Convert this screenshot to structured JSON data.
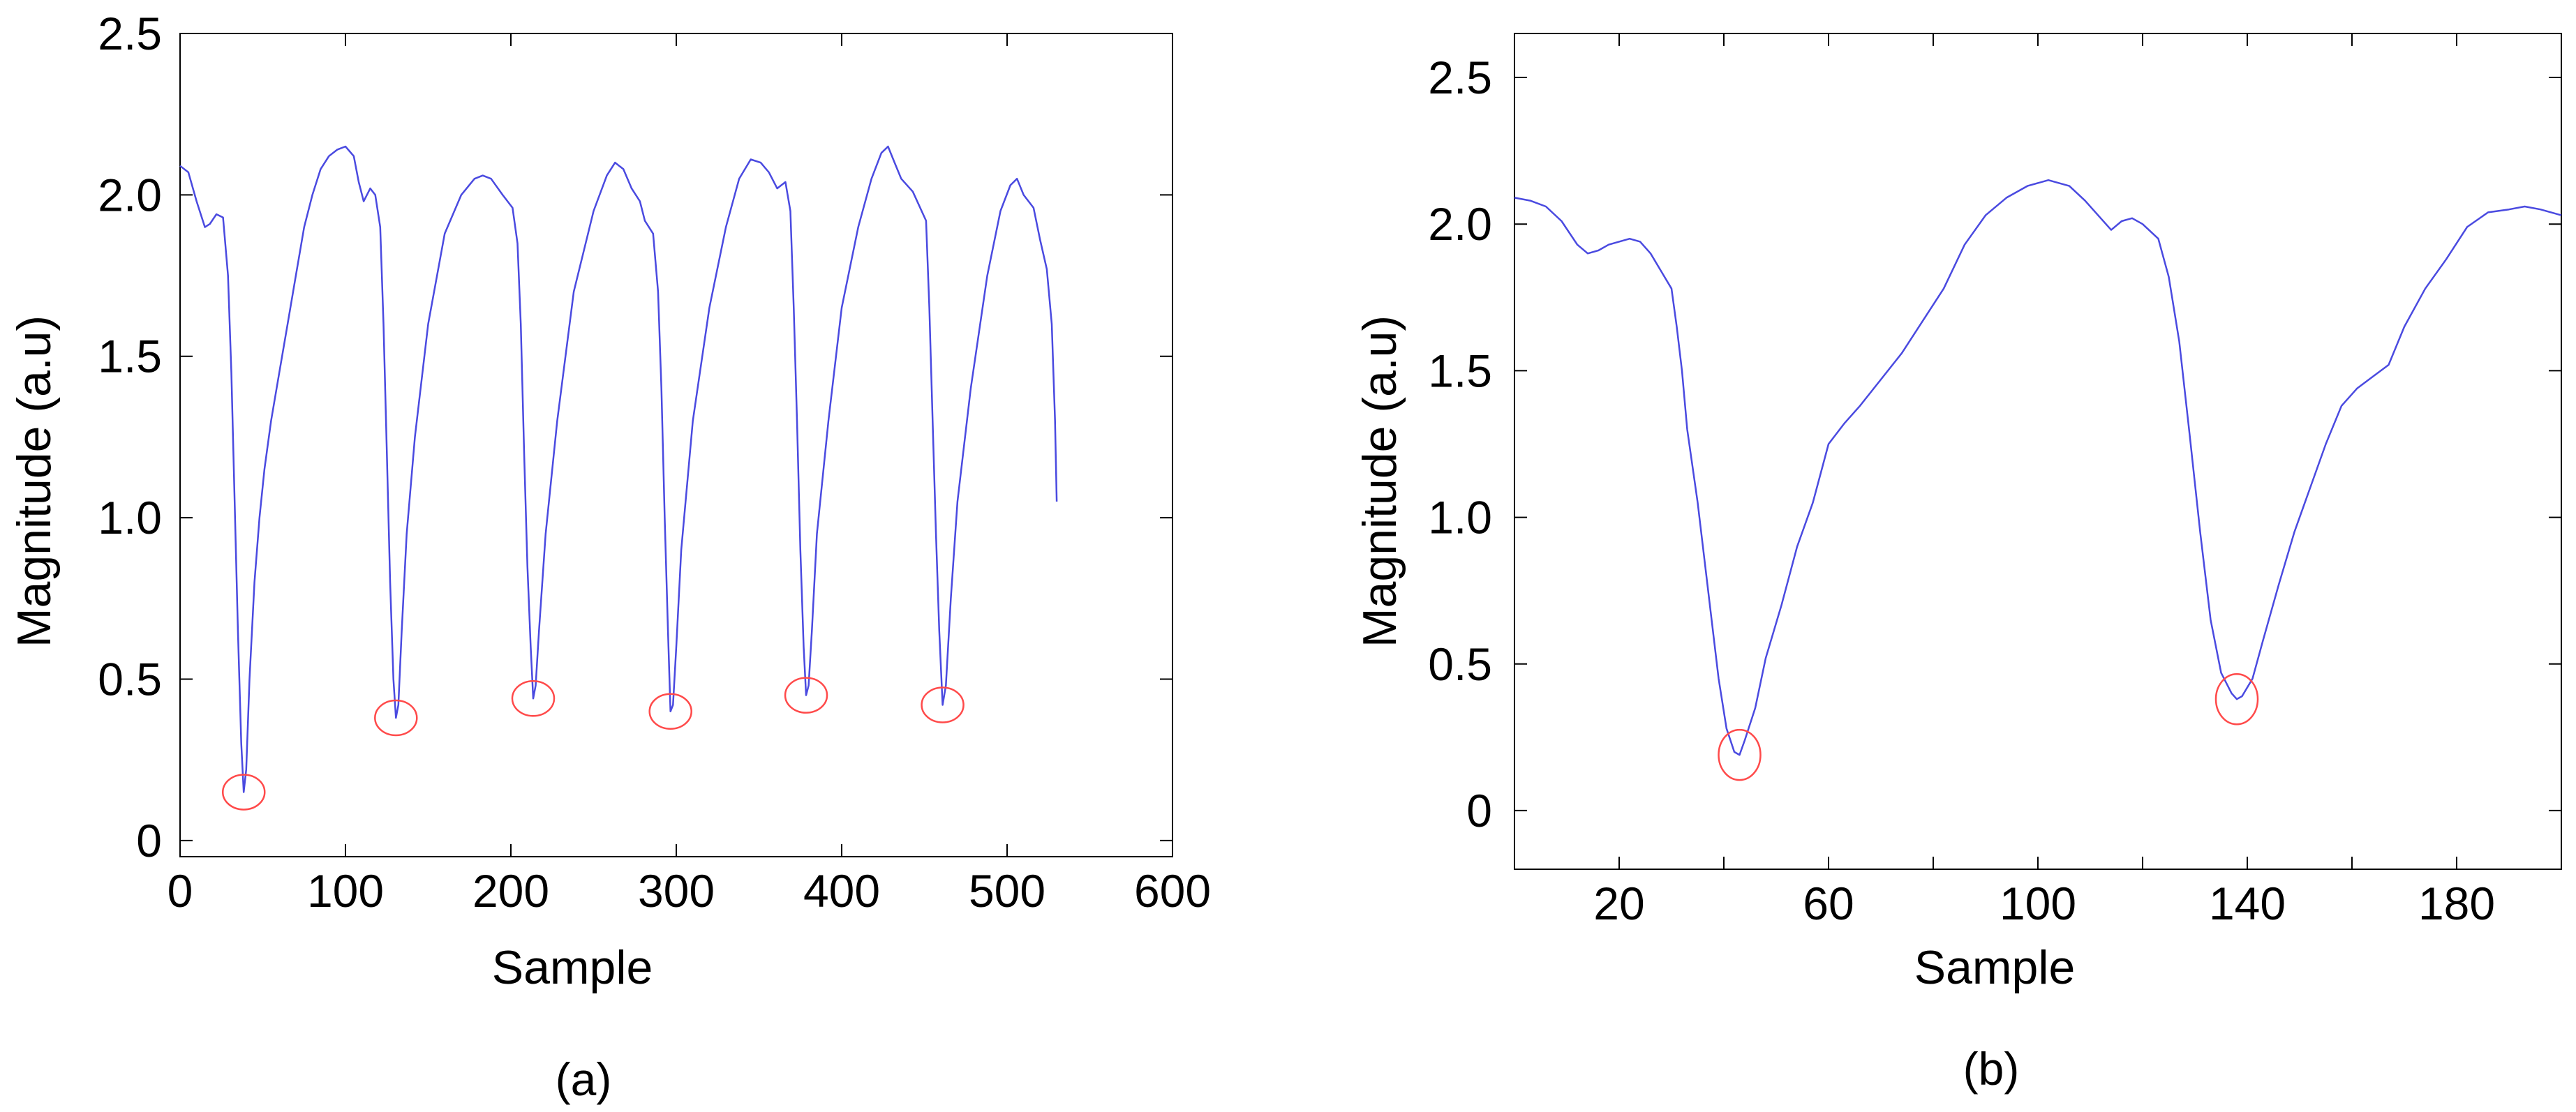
{
  "chart_data": [
    {
      "panel": "(a)",
      "type": "line",
      "xlabel": "Sample",
      "ylabel": "Magnitude (a.u)",
      "xlim": [
        0,
        600
      ],
      "ylim": [
        -0.05,
        2.5
      ],
      "x_ticks": [
        0,
        100,
        200,
        300,
        400,
        500,
        600
      ],
      "x_tick_labels": [
        "0",
        "100",
        "200",
        "300",
        "400",
        "500",
        "600"
      ],
      "y_ticks": [
        0,
        0.5,
        1.0,
        1.5,
        2.0,
        2.5
      ],
      "y_tick_labels": [
        "0",
        "0.5",
        "1.0",
        "1.5",
        "2.0",
        "2.5"
      ],
      "grid": false,
      "line_color": "#4a4ae0",
      "marker_color": "#ff4a4a",
      "series": [
        {
          "points": [
            [
              0,
              2.09
            ],
            [
              5,
              2.07
            ],
            [
              10,
              1.98
            ],
            [
              15,
              1.9
            ],
            [
              18,
              1.91
            ],
            [
              22,
              1.94
            ],
            [
              26,
              1.93
            ],
            [
              29,
              1.75
            ],
            [
              31,
              1.45
            ],
            [
              33,
              1.05
            ],
            [
              35,
              0.65
            ],
            [
              37,
              0.3
            ],
            [
              38.5,
              0.15
            ],
            [
              40,
              0.22
            ],
            [
              42,
              0.5
            ],
            [
              45,
              0.8
            ],
            [
              48,
              1.0
            ],
            [
              51,
              1.15
            ],
            [
              55,
              1.3
            ],
            [
              60,
              1.45
            ],
            [
              65,
              1.6
            ],
            [
              70,
              1.75
            ],
            [
              75,
              1.9
            ],
            [
              80,
              2.0
            ],
            [
              85,
              2.08
            ],
            [
              90,
              2.12
            ],
            [
              95,
              2.14
            ],
            [
              100,
              2.15
            ],
            [
              105,
              2.12
            ],
            [
              108,
              2.04
            ],
            [
              111,
              1.98
            ],
            [
              115,
              2.02
            ],
            [
              118,
              2.0
            ],
            [
              121,
              1.9
            ],
            [
              123,
              1.6
            ],
            [
              125,
              1.2
            ],
            [
              127,
              0.8
            ],
            [
              129,
              0.5
            ],
            [
              130.5,
              0.38
            ],
            [
              132,
              0.42
            ],
            [
              134,
              0.65
            ],
            [
              137,
              0.95
            ],
            [
              142,
              1.25
            ],
            [
              150,
              1.6
            ],
            [
              160,
              1.88
            ],
            [
              170,
              2.0
            ],
            [
              178,
              2.05
            ],
            [
              183,
              2.06
            ],
            [
              188,
              2.05
            ],
            [
              195,
              2.0
            ],
            [
              201,
              1.96
            ],
            [
              204,
              1.85
            ],
            [
              206,
              1.6
            ],
            [
              208,
              1.2
            ],
            [
              210,
              0.85
            ],
            [
              212,
              0.6
            ],
            [
              213.5,
              0.44
            ],
            [
              215,
              0.48
            ],
            [
              217,
              0.65
            ],
            [
              221,
              0.95
            ],
            [
              228,
              1.3
            ],
            [
              238,
              1.7
            ],
            [
              250,
              1.95
            ],
            [
              258,
              2.06
            ],
            [
              263,
              2.1
            ],
            [
              268,
              2.08
            ],
            [
              273,
              2.02
            ],
            [
              278,
              1.98
            ],
            [
              281,
              1.92
            ],
            [
              286,
              1.88
            ],
            [
              289,
              1.7
            ],
            [
              291,
              1.4
            ],
            [
              293,
              1.0
            ],
            [
              295,
              0.65
            ],
            [
              296.5,
              0.4
            ],
            [
              298,
              0.42
            ],
            [
              300,
              0.6
            ],
            [
              303,
              0.9
            ],
            [
              310,
              1.3
            ],
            [
              320,
              1.65
            ],
            [
              330,
              1.9
            ],
            [
              338,
              2.05
            ],
            [
              345,
              2.11
            ],
            [
              351,
              2.1
            ],
            [
              356,
              2.07
            ],
            [
              361,
              2.02
            ],
            [
              366,
              2.04
            ],
            [
              369,
              1.95
            ],
            [
              371,
              1.65
            ],
            [
              373,
              1.3
            ],
            [
              375,
              0.9
            ],
            [
              377,
              0.6
            ],
            [
              378.5,
              0.45
            ],
            [
              380,
              0.48
            ],
            [
              382,
              0.65
            ],
            [
              385,
              0.95
            ],
            [
              392,
              1.3
            ],
            [
              400,
              1.65
            ],
            [
              410,
              1.9
            ],
            [
              418,
              2.05
            ],
            [
              424,
              2.13
            ],
            [
              428,
              2.15
            ],
            [
              432,
              2.1
            ],
            [
              436,
              2.05
            ],
            [
              443,
              2.01
            ],
            [
              451,
              1.92
            ],
            [
              453,
              1.65
            ],
            [
              455,
              1.3
            ],
            [
              457,
              0.95
            ],
            [
              459,
              0.65
            ],
            [
              461,
              0.42
            ],
            [
              463,
              0.48
            ],
            [
              466,
              0.75
            ],
            [
              470,
              1.05
            ],
            [
              478,
              1.4
            ],
            [
              488,
              1.75
            ],
            [
              496,
              1.95
            ],
            [
              502,
              2.03
            ],
            [
              506,
              2.05
            ],
            [
              510,
              2.0
            ],
            [
              516,
              1.96
            ],
            [
              520,
              1.86
            ],
            [
              524,
              1.77
            ],
            [
              527,
              1.6
            ],
            [
              529,
              1.3
            ],
            [
              530,
              1.05
            ]
          ]
        }
      ],
      "marked_minima": [
        {
          "x": 38.5,
          "y": 0.15
        },
        {
          "x": 130.5,
          "y": 0.38
        },
        {
          "x": 213.5,
          "y": 0.44
        },
        {
          "x": 296.5,
          "y": 0.4
        },
        {
          "x": 378.5,
          "y": 0.45
        },
        {
          "x": 461,
          "y": 0.42
        }
      ]
    },
    {
      "panel": "(b)",
      "type": "line",
      "xlabel": "Sample",
      "ylabel": "Magnitude (a.u)",
      "xlim": [
        0,
        200
      ],
      "ylim": [
        -0.2,
        2.65
      ],
      "x_ticks": [
        20,
        40,
        60,
        80,
        100,
        120,
        140,
        160,
        180
      ],
      "x_tick_labels": [
        "20",
        "",
        "60",
        "",
        "100",
        "",
        "140",
        "",
        "180"
      ],
      "y_ticks": [
        0,
        0.5,
        1.0,
        1.5,
        2.0,
        2.5
      ],
      "y_tick_labels": [
        "0",
        "0.5",
        "1.0",
        "1.5",
        "2.0",
        "2.5"
      ],
      "grid": false,
      "line_color": "#4a4ae0",
      "marker_color": "#ff4a4a",
      "series": [
        {
          "points": [
            [
              0,
              2.09
            ],
            [
              3,
              2.08
            ],
            [
              6,
              2.06
            ],
            [
              9,
              2.01
            ],
            [
              12,
              1.93
            ],
            [
              14,
              1.9
            ],
            [
              16,
              1.91
            ],
            [
              18,
              1.93
            ],
            [
              20,
              1.94
            ],
            [
              22,
              1.95
            ],
            [
              24,
              1.94
            ],
            [
              26,
              1.9
            ],
            [
              28,
              1.84
            ],
            [
              30,
              1.78
            ],
            [
              31,
              1.65
            ],
            [
              32,
              1.5
            ],
            [
              33,
              1.3
            ],
            [
              35,
              1.05
            ],
            [
              37,
              0.75
            ],
            [
              39,
              0.45
            ],
            [
              40.5,
              0.28
            ],
            [
              42,
              0.2
            ],
            [
              43,
              0.19
            ],
            [
              44,
              0.24
            ],
            [
              46,
              0.35
            ],
            [
              48,
              0.52
            ],
            [
              51,
              0.7
            ],
            [
              54,
              0.9
            ],
            [
              57,
              1.05
            ],
            [
              60,
              1.25
            ],
            [
              63,
              1.32
            ],
            [
              66,
              1.38
            ],
            [
              70,
              1.47
            ],
            [
              74,
              1.56
            ],
            [
              78,
              1.67
            ],
            [
              82,
              1.78
            ],
            [
              86,
              1.93
            ],
            [
              90,
              2.03
            ],
            [
              94,
              2.09
            ],
            [
              98,
              2.13
            ],
            [
              102,
              2.15
            ],
            [
              106,
              2.13
            ],
            [
              109,
              2.08
            ],
            [
              112,
              2.02
            ],
            [
              114,
              1.98
            ],
            [
              116,
              2.01
            ],
            [
              118,
              2.02
            ],
            [
              120,
              2.0
            ],
            [
              123,
              1.95
            ],
            [
              125,
              1.82
            ],
            [
              127,
              1.6
            ],
            [
              129,
              1.28
            ],
            [
              131,
              0.95
            ],
            [
              133,
              0.65
            ],
            [
              135,
              0.47
            ],
            [
              137,
              0.4
            ],
            [
              138,
              0.38
            ],
            [
              139,
              0.39
            ],
            [
              141,
              0.45
            ],
            [
              143,
              0.58
            ],
            [
              146,
              0.77
            ],
            [
              149,
              0.95
            ],
            [
              152,
              1.1
            ],
            [
              155,
              1.25
            ],
            [
              158,
              1.38
            ],
            [
              161,
              1.44
            ],
            [
              164,
              1.48
            ],
            [
              167,
              1.52
            ],
            [
              170,
              1.65
            ],
            [
              174,
              1.78
            ],
            [
              178,
              1.88
            ],
            [
              182,
              1.99
            ],
            [
              186,
              2.04
            ],
            [
              190,
              2.05
            ],
            [
              193,
              2.06
            ],
            [
              196,
              2.05
            ],
            [
              200,
              2.03
            ]
          ]
        }
      ],
      "marked_minima": [
        {
          "x": 43,
          "y": 0.19
        },
        {
          "x": 138,
          "y": 0.38
        }
      ]
    }
  ]
}
